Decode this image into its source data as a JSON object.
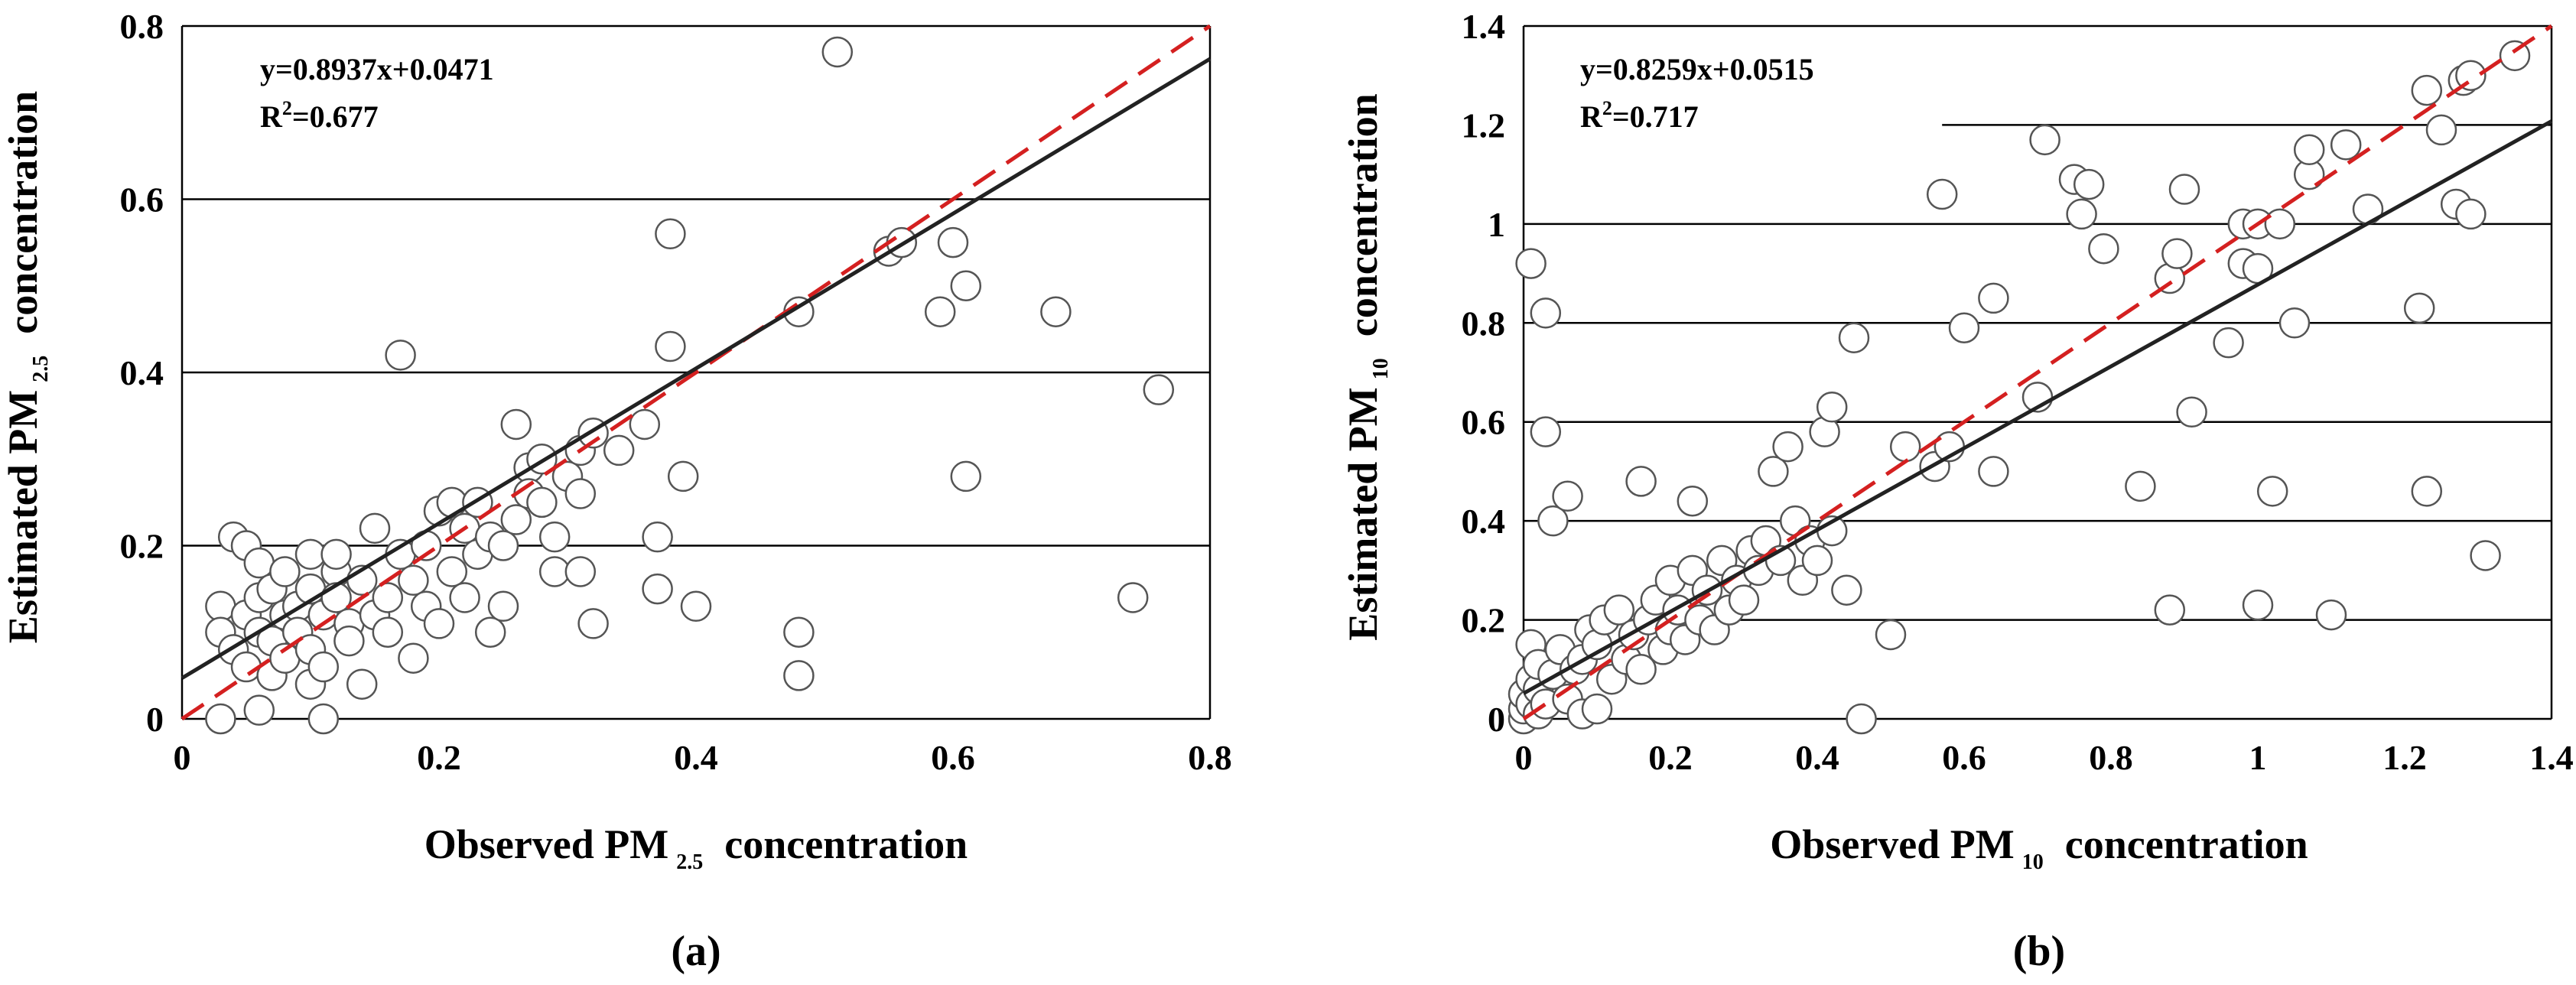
{
  "chart_data": [
    {
      "type": "scatter",
      "panel_label": "(a)",
      "xlabel": {
        "prefix": "Observed PM",
        "subscript": "2.5",
        "suffix": "concentration"
      },
      "ylabel": {
        "prefix": "Estimated PM",
        "subscript": "2.5",
        "suffix": "concentration"
      },
      "xlim": [
        0,
        0.8
      ],
      "ylim": [
        0,
        0.8
      ],
      "xticks": [
        "0",
        "0.2",
        "0.4",
        "0.6",
        "0.8"
      ],
      "yticks": [
        "0",
        "0.2",
        "0.4",
        "0.6",
        "0.8"
      ],
      "xtick_values": [
        0,
        0.2,
        0.4,
        0.6,
        0.8
      ],
      "ytick_values": [
        0,
        0.2,
        0.4,
        0.6,
        0.8
      ],
      "gridlines_y": [
        0.2,
        0.4,
        0.6,
        0.8
      ],
      "equation": "y=0.8937x+0.0471",
      "r2_label": "R",
      "r2_sup": "2",
      "r2_value": "=0.677",
      "fit": {
        "slope": 0.8937,
        "intercept": 0.0471,
        "color": "#222222"
      },
      "one_to_one": {
        "color": "#d42020"
      },
      "points": [
        [
          0.03,
          0.0
        ],
        [
          0.03,
          0.13
        ],
        [
          0.03,
          0.1
        ],
        [
          0.04,
          0.08
        ],
        [
          0.04,
          0.21
        ],
        [
          0.05,
          0.2
        ],
        [
          0.05,
          0.12
        ],
        [
          0.05,
          0.06
        ],
        [
          0.06,
          0.01
        ],
        [
          0.06,
          0.1
        ],
        [
          0.06,
          0.14
        ],
        [
          0.06,
          0.18
        ],
        [
          0.07,
          0.15
        ],
        [
          0.07,
          0.09
        ],
        [
          0.07,
          0.05
        ],
        [
          0.08,
          0.12
        ],
        [
          0.08,
          0.17
        ],
        [
          0.08,
          0.07
        ],
        [
          0.09,
          0.13
        ],
        [
          0.09,
          0.1
        ],
        [
          0.1,
          0.19
        ],
        [
          0.1,
          0.15
        ],
        [
          0.1,
          0.08
        ],
        [
          0.1,
          0.04
        ],
        [
          0.11,
          0.0
        ],
        [
          0.11,
          0.12
        ],
        [
          0.11,
          0.06
        ],
        [
          0.12,
          0.17
        ],
        [
          0.12,
          0.19
        ],
        [
          0.12,
          0.14
        ],
        [
          0.13,
          0.11
        ],
        [
          0.13,
          0.09
        ],
        [
          0.14,
          0.16
        ],
        [
          0.14,
          0.04
        ],
        [
          0.15,
          0.22
        ],
        [
          0.15,
          0.12
        ],
        [
          0.16,
          0.1
        ],
        [
          0.16,
          0.14
        ],
        [
          0.17,
          0.42
        ],
        [
          0.17,
          0.19
        ],
        [
          0.18,
          0.07
        ],
        [
          0.18,
          0.16
        ],
        [
          0.19,
          0.13
        ],
        [
          0.19,
          0.2
        ],
        [
          0.2,
          0.24
        ],
        [
          0.2,
          0.11
        ],
        [
          0.21,
          0.17
        ],
        [
          0.21,
          0.25
        ],
        [
          0.22,
          0.14
        ],
        [
          0.22,
          0.22
        ],
        [
          0.23,
          0.19
        ],
        [
          0.23,
          0.25
        ],
        [
          0.24,
          0.1
        ],
        [
          0.24,
          0.21
        ],
        [
          0.25,
          0.2
        ],
        [
          0.25,
          0.13
        ],
        [
          0.26,
          0.34
        ],
        [
          0.26,
          0.23
        ],
        [
          0.27,
          0.29
        ],
        [
          0.27,
          0.26
        ],
        [
          0.28,
          0.25
        ],
        [
          0.28,
          0.3
        ],
        [
          0.29,
          0.17
        ],
        [
          0.29,
          0.21
        ],
        [
          0.3,
          0.28
        ],
        [
          0.31,
          0.17
        ],
        [
          0.31,
          0.26
        ],
        [
          0.31,
          0.31
        ],
        [
          0.32,
          0.33
        ],
        [
          0.32,
          0.11
        ],
        [
          0.34,
          0.31
        ],
        [
          0.36,
          0.34
        ],
        [
          0.37,
          0.21
        ],
        [
          0.37,
          0.15
        ],
        [
          0.38,
          0.56
        ],
        [
          0.38,
          0.43
        ],
        [
          0.39,
          0.28
        ],
        [
          0.4,
          0.13
        ],
        [
          0.48,
          0.05
        ],
        [
          0.48,
          0.1
        ],
        [
          0.48,
          0.47
        ],
        [
          0.51,
          0.77
        ],
        [
          0.55,
          0.54
        ],
        [
          0.56,
          0.55
        ],
        [
          0.59,
          0.47
        ],
        [
          0.6,
          0.55
        ],
        [
          0.61,
          0.5
        ],
        [
          0.61,
          0.28
        ],
        [
          0.68,
          0.47
        ],
        [
          0.74,
          0.14
        ],
        [
          0.76,
          0.38
        ]
      ]
    },
    {
      "type": "scatter",
      "panel_label": "(b)",
      "xlabel": {
        "prefix": "Observed PM",
        "subscript": "10",
        "suffix": "concentration"
      },
      "ylabel": {
        "prefix": "Estimated PM",
        "subscript": "10",
        "suffix": "concentration"
      },
      "xlim": [
        0,
        1.4
      ],
      "ylim": [
        0,
        1.4
      ],
      "xticks": [
        "0",
        "0.2",
        "0.4",
        "0.6",
        "0.8",
        "1",
        "1.2",
        "1.4"
      ],
      "yticks": [
        "0",
        "0.2",
        "0.4",
        "0.6",
        "0.8",
        "1",
        "1.2",
        "1.4"
      ],
      "xtick_values": [
        0,
        0.2,
        0.4,
        0.6,
        0.8,
        1.0,
        1.2,
        1.4
      ],
      "ytick_values": [
        0,
        0.2,
        0.4,
        0.6,
        0.8,
        1.0,
        1.2,
        1.4
      ],
      "gridlines_y": [
        0.2,
        0.4,
        0.6,
        0.8,
        1.0,
        1.2,
        1.4
      ],
      "gridline_12_start_x": 0.57,
      "equation": "y=0.8259x+0.0515",
      "r2_label": "R",
      "r2_sup": "2",
      "r2_value": "=0.717",
      "fit": {
        "slope": 0.8259,
        "intercept": 0.0515,
        "color": "#222222"
      },
      "one_to_one": {
        "color": "#d42020"
      },
      "points": [
        [
          0.0,
          0.0
        ],
        [
          0.0,
          0.02
        ],
        [
          0.0,
          0.05
        ],
        [
          0.01,
          0.03
        ],
        [
          0.01,
          0.08
        ],
        [
          0.01,
          0.15
        ],
        [
          0.01,
          0.92
        ],
        [
          0.02,
          0.01
        ],
        [
          0.02,
          0.06
        ],
        [
          0.02,
          0.11
        ],
        [
          0.03,
          0.58
        ],
        [
          0.03,
          0.82
        ],
        [
          0.03,
          0.03
        ],
        [
          0.04,
          0.4
        ],
        [
          0.04,
          0.09
        ],
        [
          0.05,
          0.14
        ],
        [
          0.06,
          0.45
        ],
        [
          0.06,
          0.04
        ],
        [
          0.07,
          0.1
        ],
        [
          0.08,
          0.01
        ],
        [
          0.08,
          0.12
        ],
        [
          0.09,
          0.18
        ],
        [
          0.1,
          0.02
        ],
        [
          0.1,
          0.15
        ],
        [
          0.11,
          0.2
        ],
        [
          0.12,
          0.08
        ],
        [
          0.13,
          0.22
        ],
        [
          0.14,
          0.12
        ],
        [
          0.15,
          0.17
        ],
        [
          0.16,
          0.48
        ],
        [
          0.16,
          0.1
        ],
        [
          0.17,
          0.2
        ],
        [
          0.18,
          0.24
        ],
        [
          0.19,
          0.14
        ],
        [
          0.2,
          0.18
        ],
        [
          0.2,
          0.28
        ],
        [
          0.21,
          0.22
        ],
        [
          0.22,
          0.16
        ],
        [
          0.23,
          0.44
        ],
        [
          0.23,
          0.3
        ],
        [
          0.24,
          0.2
        ],
        [
          0.25,
          0.26
        ],
        [
          0.26,
          0.18
        ],
        [
          0.27,
          0.32
        ],
        [
          0.28,
          0.22
        ],
        [
          0.29,
          0.28
        ],
        [
          0.3,
          0.24
        ],
        [
          0.31,
          0.34
        ],
        [
          0.32,
          0.3
        ],
        [
          0.33,
          0.36
        ],
        [
          0.34,
          0.5
        ],
        [
          0.35,
          0.32
        ],
        [
          0.36,
          0.55
        ],
        [
          0.37,
          0.4
        ],
        [
          0.38,
          0.28
        ],
        [
          0.39,
          0.36
        ],
        [
          0.4,
          0.32
        ],
        [
          0.41,
          0.58
        ],
        [
          0.42,
          0.38
        ],
        [
          0.42,
          0.63
        ],
        [
          0.44,
          0.26
        ],
        [
          0.45,
          0.77
        ],
        [
          0.46,
          0.0
        ],
        [
          0.5,
          0.17
        ],
        [
          0.52,
          0.55
        ],
        [
          0.56,
          0.51
        ],
        [
          0.57,
          1.06
        ],
        [
          0.58,
          0.55
        ],
        [
          0.6,
          0.79
        ],
        [
          0.64,
          0.85
        ],
        [
          0.64,
          0.5
        ],
        [
          0.7,
          0.65
        ],
        [
          0.71,
          1.17
        ],
        [
          0.75,
          1.09
        ],
        [
          0.76,
          1.02
        ],
        [
          0.77,
          1.08
        ],
        [
          0.79,
          0.95
        ],
        [
          0.84,
          0.47
        ],
        [
          0.88,
          0.22
        ],
        [
          0.88,
          0.89
        ],
        [
          0.89,
          0.94
        ],
        [
          0.9,
          1.07
        ],
        [
          0.91,
          0.62
        ],
        [
          0.96,
          0.76
        ],
        [
          0.98,
          1.0
        ],
        [
          0.98,
          0.92
        ],
        [
          1.0,
          1.0
        ],
        [
          1.0,
          0.91
        ],
        [
          1.0,
          0.23
        ],
        [
          1.02,
          0.46
        ],
        [
          1.03,
          1.0
        ],
        [
          1.05,
          0.8
        ],
        [
          1.07,
          1.1
        ],
        [
          1.07,
          1.15
        ],
        [
          1.1,
          0.21
        ],
        [
          1.12,
          1.16
        ],
        [
          1.15,
          1.03
        ],
        [
          1.22,
          0.83
        ],
        [
          1.23,
          0.46
        ],
        [
          1.23,
          1.27
        ],
        [
          1.25,
          1.19
        ],
        [
          1.27,
          1.04
        ],
        [
          1.28,
          1.29
        ],
        [
          1.29,
          1.3
        ],
        [
          1.29,
          1.02
        ],
        [
          1.31,
          0.33
        ],
        [
          1.35,
          1.34
        ]
      ]
    }
  ]
}
